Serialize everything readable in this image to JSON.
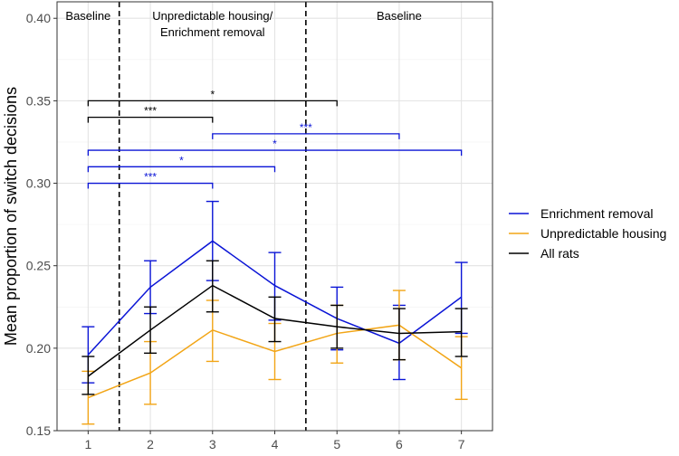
{
  "chart_data": {
    "type": "line",
    "x": [
      1,
      2,
      3,
      4,
      5,
      6,
      7
    ],
    "xlabel": "",
    "ylabel": "Mean proportion of switch decisions",
    "xlim": [
      0.5,
      7.5
    ],
    "ylim": [
      0.15,
      0.41
    ],
    "yticks": [
      0.15,
      0.2,
      0.25,
      0.3,
      0.35,
      0.4
    ],
    "ytick_labels": [
      "0.15",
      "0.20",
      "0.25",
      "0.30",
      "0.35",
      "0.40"
    ],
    "xtick_labels": [
      "1",
      "2",
      "3",
      "4",
      "5",
      "6",
      "7"
    ],
    "grid": true,
    "legend_position": "right",
    "series": [
      {
        "name": "Enrichment removal",
        "color": "#0a14d6",
        "values": [
          0.196,
          0.237,
          0.265,
          0.238,
          0.218,
          0.203,
          0.231
        ],
        "err_low": [
          0.179,
          0.221,
          0.241,
          0.217,
          0.199,
          0.181,
          0.209
        ],
        "err_high": [
          0.213,
          0.253,
          0.289,
          0.258,
          0.237,
          0.226,
          0.252
        ]
      },
      {
        "name": "Unpredictable housing",
        "color": "#f2a516",
        "values": [
          0.17,
          0.185,
          0.211,
          0.198,
          0.209,
          0.214,
          0.188
        ],
        "err_low": [
          0.154,
          0.166,
          0.192,
          0.181,
          0.191,
          0.193,
          0.169
        ],
        "err_high": [
          0.186,
          0.204,
          0.229,
          0.215,
          0.226,
          0.235,
          0.207
        ]
      },
      {
        "name": "All rats",
        "color": "#000000",
        "values": [
          0.183,
          0.211,
          0.238,
          0.218,
          0.213,
          0.209,
          0.21
        ],
        "err_low": [
          0.172,
          0.197,
          0.222,
          0.204,
          0.2,
          0.193,
          0.195
        ],
        "err_high": [
          0.195,
          0.225,
          0.253,
          0.231,
          0.226,
          0.224,
          0.224
        ]
      }
    ],
    "phase_dividers": [
      1.5,
      4.5
    ],
    "phases": [
      {
        "line1": "Baseline",
        "line2": "",
        "x": 1.0
      },
      {
        "line1": "Unpredictable housing/",
        "line2": "Enrichment removal",
        "x": 3.0
      },
      {
        "line1": "Baseline",
        "line2": "",
        "x": 6.0
      }
    ],
    "significance": [
      {
        "x1": 1,
        "x2": 5,
        "y": 0.35,
        "label": "*",
        "color": "#000000",
        "label_x": 3.0
      },
      {
        "x1": 1,
        "x2": 3,
        "y": 0.34,
        "label": "***",
        "color": "#000000",
        "label_x": 2.0
      },
      {
        "x1": 3,
        "x2": 6,
        "y": 0.33,
        "label": "***",
        "color": "#0a14d6",
        "label_x": 4.5
      },
      {
        "x1": 1,
        "x2": 7,
        "y": 0.32,
        "label": "*",
        "color": "#0a14d6",
        "label_x": 4.0
      },
      {
        "x1": 1,
        "x2": 4,
        "y": 0.31,
        "label": "*",
        "color": "#0a14d6",
        "label_x": 2.5
      },
      {
        "x1": 1,
        "x2": 3,
        "y": 0.3,
        "label": "***",
        "color": "#0a14d6",
        "label_x": 2.0
      }
    ]
  }
}
